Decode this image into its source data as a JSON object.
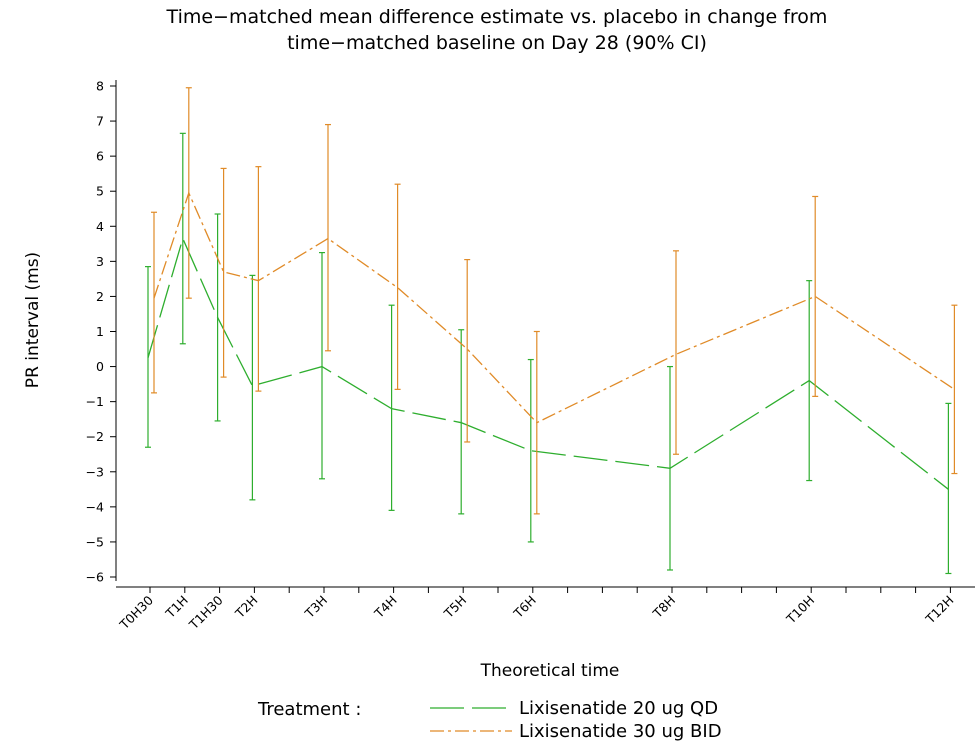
{
  "chart_data": {
    "type": "line",
    "title": [
      "Time−matched mean difference estimate vs. placebo in change from",
      "time−matched baseline on Day 28 (90% CI)"
    ],
    "xlabel": "Theoretical time",
    "ylabel": "PR interval (ms)",
    "ylim": [
      -6,
      8
    ],
    "yticks": [
      8,
      7,
      6,
      5,
      4,
      3,
      2,
      1,
      0,
      -1,
      -2,
      -3,
      -4,
      -5,
      -6
    ],
    "x_hours": [
      0.5,
      1,
      1.5,
      2,
      3,
      4,
      5,
      6,
      8,
      10,
      12
    ],
    "x_tick_labels": [
      "T0H30",
      "T1H",
      "T1H30",
      "T2H",
      "T3H",
      "T4H",
      "T5H",
      "T6H",
      "T8H",
      "T10H",
      "T12H"
    ],
    "legend_title": "Treatment :",
    "series": [
      {
        "name": "Lixisenatide 20 ug QD",
        "color": "#2eae2e",
        "dash": "long-dash",
        "mean": [
          0.25,
          3.65,
          1.4,
          -0.55,
          0.0,
          -1.2,
          -1.6,
          -2.4,
          -2.9,
          -0.4,
          -3.5
        ],
        "lower": [
          -2.3,
          0.65,
          -1.55,
          -3.8,
          -3.2,
          -4.1,
          -4.2,
          -5.0,
          -5.8,
          -3.25,
          -5.9
        ],
        "upper": [
          2.85,
          6.65,
          4.35,
          2.6,
          3.25,
          1.75,
          1.05,
          0.2,
          0.0,
          2.45,
          -1.05
        ]
      },
      {
        "name": "Lixisenatide 30 ug BID",
        "color": "#e08b28",
        "dash": "dash-dot",
        "mean": [
          1.95,
          4.95,
          2.7,
          2.45,
          3.65,
          2.25,
          0.5,
          -1.6,
          0.35,
          2.0,
          -0.65
        ],
        "lower": [
          -0.75,
          1.95,
          -0.3,
          -0.7,
          0.45,
          -0.65,
          -2.15,
          -4.2,
          -2.5,
          -0.85,
          -3.05
        ],
        "upper": [
          4.4,
          7.95,
          5.65,
          5.7,
          6.9,
          5.2,
          3.05,
          1.0,
          3.3,
          4.85,
          1.75
        ]
      }
    ]
  }
}
